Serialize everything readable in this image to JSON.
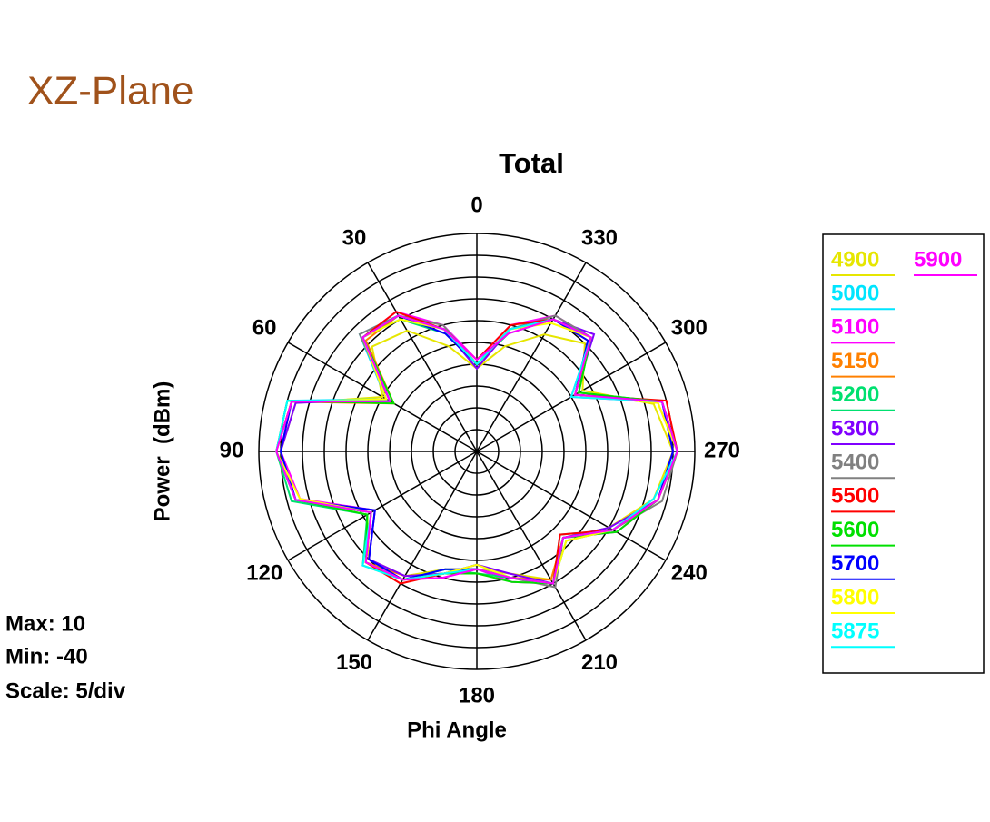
{
  "chart_data": {
    "type": "polar",
    "heading": "XZ-Plane",
    "title": "Total",
    "ylabel": "Power  (dBm)",
    "xlabel": "Phi Angle",
    "annotations": [
      "Max: 10",
      "Min: -40",
      "Scale: 5/div"
    ],
    "x": [
      0,
      15,
      30,
      45,
      60,
      75,
      90,
      105,
      120,
      135,
      150,
      165,
      180,
      195,
      210,
      225,
      240,
      255,
      270,
      285,
      300,
      315,
      330,
      345
    ],
    "xticks": [
      0,
      30,
      60,
      90,
      120,
      150,
      180,
      210,
      240,
      270,
      300,
      330
    ],
    "ylim": [
      -40,
      10
    ],
    "yticks": [
      -40,
      -35,
      -30,
      -25,
      -20,
      -15,
      -10,
      -5,
      0,
      5,
      10
    ],
    "series": [
      {
        "name": "4900",
        "color": "#e6e600",
        "values": [
          -21,
          -15,
          -8,
          -6,
          -15,
          3,
          5,
          3,
          -11,
          -5,
          -7,
          -12,
          -13,
          -11,
          -6,
          -12,
          -5,
          2,
          5,
          2,
          -12,
          -5,
          -9,
          -15
        ]
      },
      {
        "name": "5000",
        "color": "#00e5ff",
        "values": [
          -20,
          -11,
          -4,
          -2,
          -16,
          5,
          6,
          3,
          -12,
          -4,
          -6,
          -11,
          -14,
          -10,
          -5,
          -13,
          -4,
          3,
          6,
          4,
          -14,
          -3,
          -5,
          -11
        ]
      },
      {
        "name": "5100",
        "color": "#ff00ff",
        "values": [
          -19,
          -10,
          -3,
          -3,
          -17,
          4,
          5,
          2,
          -13,
          -5,
          -6,
          -10,
          -13,
          -9,
          -5,
          -12,
          -3,
          3,
          5,
          4,
          -15,
          -3,
          -4,
          -10
        ]
      },
      {
        "name": "5150",
        "color": "#ff8000",
        "values": [
          -20,
          -11,
          -4,
          -4,
          -18,
          4,
          6,
          3,
          -12,
          -4,
          -7,
          -11,
          -13,
          -10,
          -6,
          -12,
          -4,
          2,
          6,
          3,
          -14,
          -4,
          -5,
          -11
        ]
      },
      {
        "name": "5200",
        "color": "#00e070",
        "values": [
          -20,
          -12,
          -5,
          -3,
          -17,
          4,
          6,
          4,
          -11,
          -3,
          -6,
          -12,
          -12,
          -10,
          -5,
          -11,
          -4,
          3,
          6,
          4,
          -13,
          -3,
          -5,
          -12
        ]
      },
      {
        "name": "5300",
        "color": "#8000ff",
        "values": [
          -21,
          -11,
          -4,
          -3,
          -16,
          3,
          5,
          3,
          -13,
          -5,
          -7,
          -11,
          -14,
          -11,
          -5,
          -12,
          -5,
          3,
          5,
          4,
          -14,
          -2,
          -5,
          -11
        ]
      },
      {
        "name": "5400",
        "color": "#808080",
        "values": [
          -20,
          -10,
          -4,
          -2,
          -17,
          4,
          6,
          3,
          -12,
          -4,
          -6,
          -11,
          -13,
          -10,
          -4,
          -12,
          -4,
          4,
          6,
          4,
          -14,
          -3,
          -4,
          -11
        ]
      },
      {
        "name": "5500",
        "color": "#ff0000",
        "values": [
          -19,
          -11,
          -3,
          -3,
          -17,
          4,
          6,
          3,
          -12,
          -4,
          -5,
          -11,
          -13,
          -10,
          -5,
          -13,
          -4,
          3,
          6,
          5,
          -14,
          -3,
          -5,
          -10
        ]
      },
      {
        "name": "5600",
        "color": "#00e000",
        "values": [
          -20,
          -11,
          -4,
          -3,
          -18,
          5,
          6,
          3,
          -11,
          -4,
          -6,
          -11,
          -12,
          -9,
          -5,
          -12,
          -3,
          3,
          6,
          4,
          -13,
          -3,
          -5,
          -11
        ]
      },
      {
        "name": "5700",
        "color": "#0000ff",
        "values": [
          -20,
          -12,
          -4,
          -3,
          -17,
          4,
          5,
          3,
          -13,
          -5,
          -6,
          -12,
          -13,
          -10,
          -5,
          -12,
          -4,
          3,
          5,
          4,
          -14,
          -4,
          -5,
          -11
        ]
      },
      {
        "name": "5800",
        "color": "#ffff00",
        "values": [
          -20,
          -11,
          -5,
          -3,
          -16,
          4,
          6,
          2,
          -12,
          -4,
          -6,
          -11,
          -14,
          -10,
          -5,
          -11,
          -4,
          3,
          6,
          3,
          -14,
          -3,
          -6,
          -11
        ]
      },
      {
        "name": "5875",
        "color": "#00ffff",
        "values": [
          -20,
          -11,
          -4,
          -3,
          -17,
          5,
          6,
          3,
          -12,
          -3,
          -6,
          -11,
          -13,
          -10,
          -5,
          -12,
          -4,
          2,
          6,
          4,
          -15,
          -3,
          -5,
          -11
        ]
      },
      {
        "name": "5900",
        "color": "#ff00ff",
        "values": [
          -19,
          -11,
          -4,
          -3,
          -17,
          4,
          6,
          3,
          -12,
          -4,
          -6,
          -10,
          -13,
          -10,
          -5,
          -12,
          -4,
          3,
          6,
          4,
          -14,
          -3,
          -5,
          -12
        ]
      }
    ]
  }
}
